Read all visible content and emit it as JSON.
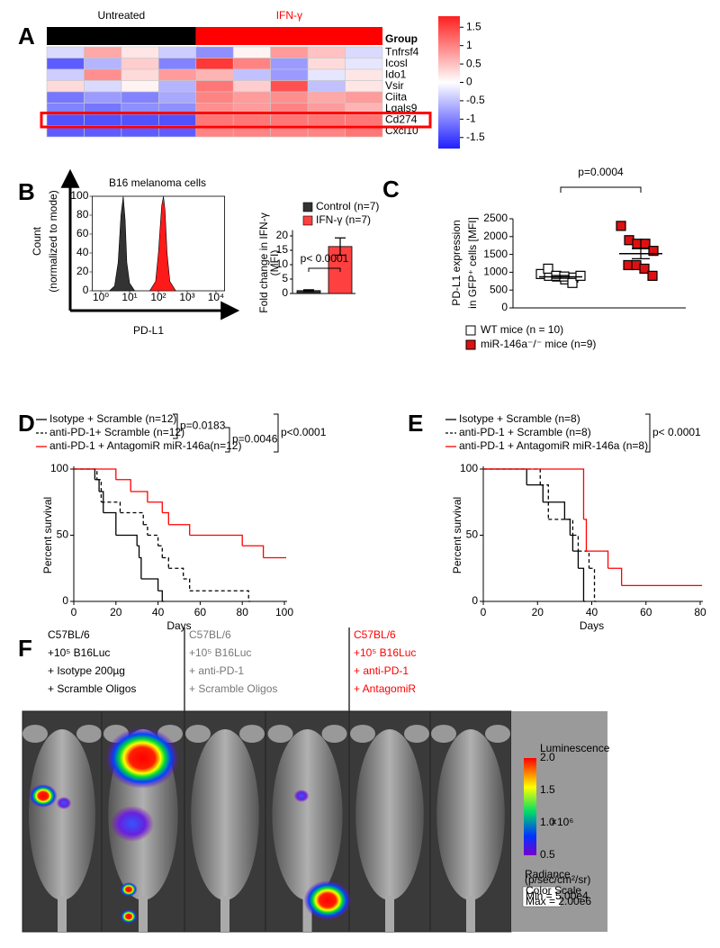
{
  "chart_data": [
    {
      "type": "heatmap",
      "panel": "A",
      "column_groups": [
        {
          "name": "Untreated",
          "color": "#000000",
          "count": 4
        },
        {
          "name": "IFN-γ",
          "color": "#ff0000",
          "count": 5
        }
      ],
      "group_label": "Group",
      "rows": [
        "Tnfrsf4",
        "Icosl",
        "Ido1",
        "Vsir",
        "Ciita",
        "Lgals9",
        "Cd274",
        "Cxcl10"
      ],
      "values": [
        [
          -0.3,
          0.7,
          0.2,
          -0.4,
          -0.9,
          0.1,
          0.8,
          0.5,
          -0.3
        ],
        [
          -1.3,
          -0.6,
          0.4,
          -1.0,
          1.6,
          1.0,
          -0.8,
          0.3,
          -0.2
        ],
        [
          -0.4,
          0.9,
          0.3,
          0.8,
          0.6,
          -0.5,
          -0.8,
          -0.2,
          0.2
        ],
        [
          0.3,
          -0.3,
          0.1,
          -0.6,
          1.1,
          0.4,
          1.4,
          -0.5,
          0.2
        ],
        [
          -1.1,
          -0.8,
          -1.0,
          -0.7,
          1.0,
          0.8,
          0.9,
          0.7,
          0.8
        ],
        [
          -1.0,
          -1.1,
          -0.9,
          -0.9,
          0.9,
          0.8,
          1.0,
          0.8,
          0.6
        ],
        [
          -1.4,
          -1.4,
          -1.4,
          -1.4,
          1.1,
          1.1,
          1.1,
          1.1,
          1.1
        ],
        [
          -1.3,
          -1.3,
          -1.3,
          -1.3,
          1.0,
          1.0,
          1.0,
          1.0,
          1.1
        ]
      ],
      "highlight": "Cd274",
      "highlight_color": "#ff0000",
      "colors": [
        "#1f1fff",
        "#ffffff",
        "#ff1f1f"
      ],
      "colorbar_lim": [
        -1.8,
        1.8
      ],
      "colorbar_ticks": [
        1.5,
        1,
        0.5,
        0,
        -0.5,
        -1,
        -1.5
      ]
    },
    {
      "type": "density",
      "panel": "B",
      "title": "B16 melanoma cells",
      "xlabel": "PD-L1",
      "ylabel": [
        "Count",
        "(normalized to mode)"
      ],
      "xscale": "log",
      "xlim": [
        0.5,
        20000
      ],
      "xticks": [
        {
          "value": 1,
          "label": "10⁰"
        },
        {
          "value": 10,
          "label": "10¹"
        },
        {
          "value": 100,
          "label": "10²"
        },
        {
          "value": 1000,
          "label": "10³"
        },
        {
          "value": 10000,
          "label": "10⁴"
        }
      ],
      "ylim": [
        0,
        100
      ],
      "yticks": [
        0,
        20,
        40,
        60,
        80,
        100
      ],
      "series": [
        {
          "color": "#333333",
          "x": [
            2,
            3,
            4,
            5,
            6,
            7,
            8,
            10,
            15
          ],
          "values": [
            0,
            5,
            30,
            80,
            100,
            75,
            30,
            8,
            0
          ]
        },
        {
          "color": "#ff1a1a",
          "x": [
            50,
            80,
            100,
            130,
            150,
            170,
            200,
            250,
            400
          ],
          "values": [
            0,
            10,
            40,
            90,
            100,
            85,
            40,
            10,
            0
          ]
        }
      ]
    },
    {
      "type": "bar",
      "categories": [
        "Control (n=7)",
        "IFN-γ (n=7)"
      ],
      "colors": [
        "#333333",
        "#ff4040"
      ],
      "values": [
        1,
        16.3
      ],
      "errors": [
        0.3,
        3
      ],
      "ylabel": [
        "Fold change in IFN-γ",
        "(MFI)"
      ],
      "ylim": [
        0,
        22
      ],
      "yticks": [
        0,
        5,
        10,
        15,
        20
      ],
      "annotation": "p< 0.0001"
    },
    {
      "type": "dotplot",
      "panel": "C",
      "ylabel": [
        "PD-L1 expression",
        "in GFP⁺ cells [MFI]"
      ],
      "ylim": [
        0,
        2500
      ],
      "yticks": [
        0,
        500,
        1000,
        1500,
        2000,
        2500
      ],
      "annotation": "p=0.0004",
      "series": [
        {
          "name": "WT mice (n = 10)",
          "color": "#ffffff",
          "values": [
            950,
            900,
            880,
            800,
            850,
            1100,
            900,
            880,
            700,
            900
          ],
          "mean": 870,
          "sem": 40
        },
        {
          "name": "miR-146a⁻/⁻ mice (n=9)",
          "color": "#dd1111",
          "values": [
            2300,
            1900,
            1800,
            1800,
            1600,
            1200,
            1200,
            1100,
            900
          ],
          "mean": 1520,
          "sem": 140
        }
      ]
    },
    {
      "type": "step",
      "panel": "D",
      "xlabel": "Days",
      "ylabel": "Percent survival",
      "xlim": [
        0,
        100
      ],
      "xticks": [
        0,
        20,
        40,
        60,
        80,
        100
      ],
      "ylim": [
        0,
        100
      ],
      "yticks": [
        0,
        50,
        100
      ],
      "series": [
        {
          "name": "Isotype + Scramble (n=12)",
          "color": "#000000",
          "dash": false,
          "x": [
            0,
            10,
            12,
            14,
            20,
            30,
            31,
            32,
            40,
            42
          ],
          "values": [
            100,
            92,
            83,
            67,
            50,
            42,
            33,
            17,
            8,
            0
          ]
        },
        {
          "name": "anti-PD-1+ Scramble (n=12)",
          "color": "#000000",
          "dash": true,
          "x": [
            0,
            11,
            13,
            22,
            33,
            35,
            40,
            42,
            45,
            52,
            55,
            83
          ],
          "values": [
            100,
            92,
            75,
            67,
            58,
            50,
            42,
            33,
            25,
            17,
            8,
            0
          ]
        },
        {
          "name": "anti-PD-1 + AntagomiR miR-146a(n=12)",
          "color": "#ff0000",
          "dash": false,
          "x": [
            0,
            20,
            27,
            35,
            42,
            45,
            55,
            80,
            90,
            100
          ],
          "values": [
            100,
            92,
            83,
            75,
            67,
            58,
            50,
            42,
            33,
            33
          ]
        }
      ],
      "comparisons": [
        {
          "series": [
            0,
            1
          ],
          "label": "p=0.0183"
        },
        {
          "series": [
            1,
            2
          ],
          "label": "p=0.0046"
        },
        {
          "series": [
            0,
            2
          ],
          "label": "p<0.0001"
        }
      ]
    },
    {
      "type": "step",
      "panel": "E",
      "xlabel": "Days",
      "ylabel": "Percent survival",
      "xlim": [
        0,
        80
      ],
      "xticks": [
        0,
        20,
        40,
        60,
        80
      ],
      "ylim": [
        0,
        100
      ],
      "yticks": [
        0,
        50,
        100
      ],
      "series": [
        {
          "name": "Isotype + Scramble (n=8)",
          "color": "#000000",
          "dash": false,
          "x": [
            0,
            16,
            22,
            30,
            32,
            33,
            35,
            37
          ],
          "values": [
            100,
            88,
            75,
            62,
            50,
            38,
            25,
            0
          ]
        },
        {
          "name": "anti-PD-1 + Scramble (n=8)",
          "color": "#000000",
          "dash": true,
          "x": [
            0,
            21,
            24,
            33,
            35,
            39,
            41
          ],
          "values": [
            100,
            88,
            62,
            50,
            38,
            25,
            0
          ]
        },
        {
          "name": "anti-PD-1 + AntagomiR miR-146a (n=8)",
          "color": "#ff0000",
          "dash": false,
          "x": [
            0,
            37,
            38,
            46,
            51,
            80
          ],
          "values": [
            100,
            62,
            38,
            25,
            12,
            12
          ]
        }
      ],
      "comparisons": [
        {
          "series": [
            0,
            2
          ],
          "label": "p< 0.0001"
        }
      ]
    }
  ],
  "panel_f": {
    "label": "F",
    "groups": [
      {
        "color": "#000000",
        "lines": [
          "C57BL/6",
          "+10⁵ B16Luc",
          "+ Isotype 200µg",
          "+ Scramble Oligos"
        ]
      },
      {
        "color": "#777777",
        "lines": [
          "C57BL/6",
          "+10⁵ B16Luc",
          "+ anti-PD-1",
          "+ Scramble Oligos"
        ]
      },
      {
        "color": "#ff0000",
        "lines": [
          "C57BL/6",
          "+10⁵ B16Luc",
          "+ anti-PD-1",
          "+ AntagomiR"
        ]
      }
    ],
    "scale": {
      "title": "Luminescence",
      "ticks": [
        "2.0",
        "1.5",
        "1.0",
        "0.5"
      ],
      "unit": "×10⁶",
      "radiance": [
        "Radiance",
        "(p/sec/cm²/sr)"
      ],
      "box": [
        "Color Scale",
        "Min = 5.00e4",
        "Max = 2.00e6"
      ]
    }
  }
}
